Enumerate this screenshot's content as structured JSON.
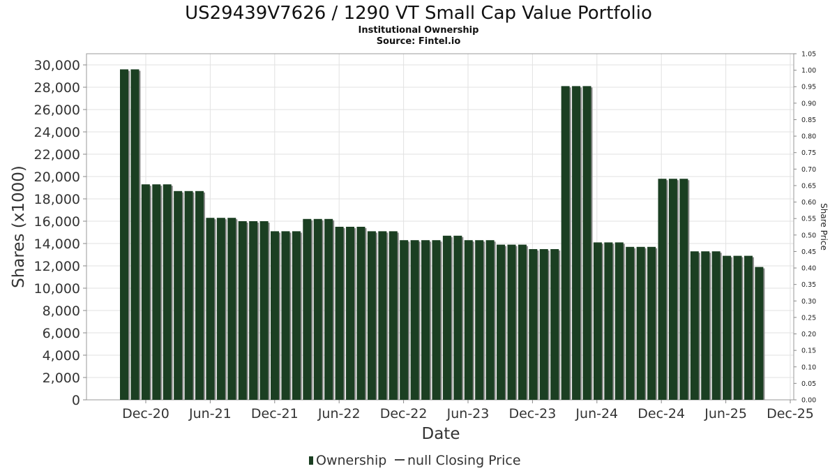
{
  "chart_data": {
    "type": "bar",
    "title": "US29439V7626 / 1290 VT Small Cap Value Portfolio",
    "subtitle": "Institutional Ownership",
    "source": "Source: Fintel.io",
    "xlabel": "Date",
    "ylabel": "Shares (x1000)",
    "y2label": "Share Price",
    "ylim": [
      0,
      31000
    ],
    "y2lim": [
      0,
      1.05
    ],
    "yticks": [
      "0",
      "2,000",
      "4,000",
      "6,000",
      "8,000",
      "10,000",
      "12,000",
      "14,000",
      "16,000",
      "18,000",
      "20,000",
      "22,000",
      "24,000",
      "26,000",
      "28,000",
      "30,000"
    ],
    "y2ticks": [
      "0.00",
      "0.05",
      "0.10",
      "0.15",
      "0.20",
      "0.25",
      "0.30",
      "0.35",
      "0.40",
      "0.45",
      "0.50",
      "0.55",
      "0.60",
      "0.65",
      "0.70",
      "0.75",
      "0.80",
      "0.85",
      "0.90",
      "0.95",
      "1.00",
      "1.05"
    ],
    "xticks": [
      "Dec-20",
      "Jun-21",
      "Dec-21",
      "Jun-22",
      "Dec-22",
      "Jun-23",
      "Dec-23",
      "Jun-24",
      "Dec-24",
      "Jun-25",
      "Dec-25"
    ],
    "grid": true,
    "legend_position": "bottom",
    "series": [
      {
        "name": "Ownership",
        "color": "#1b3f22",
        "values": [
          29600,
          29600,
          19300,
          19300,
          19300,
          18700,
          18700,
          18700,
          16300,
          16300,
          16300,
          16000,
          16000,
          16000,
          15100,
          15100,
          15100,
          16200,
          16200,
          16200,
          15500,
          15500,
          15500,
          15100,
          15100,
          15100,
          14300,
          14300,
          14300,
          14300,
          14700,
          14700,
          14300,
          14300,
          14300,
          13900,
          13900,
          13900,
          13500,
          13500,
          13500,
          28100,
          28100,
          28100,
          14100,
          14100,
          14100,
          13700,
          13700,
          13700,
          19800,
          19800,
          19800,
          13300,
          13300,
          13300,
          12900,
          12900,
          12900,
          11900
        ]
      },
      {
        "name": "null Closing Price",
        "color": "#444444",
        "values": []
      }
    ]
  }
}
